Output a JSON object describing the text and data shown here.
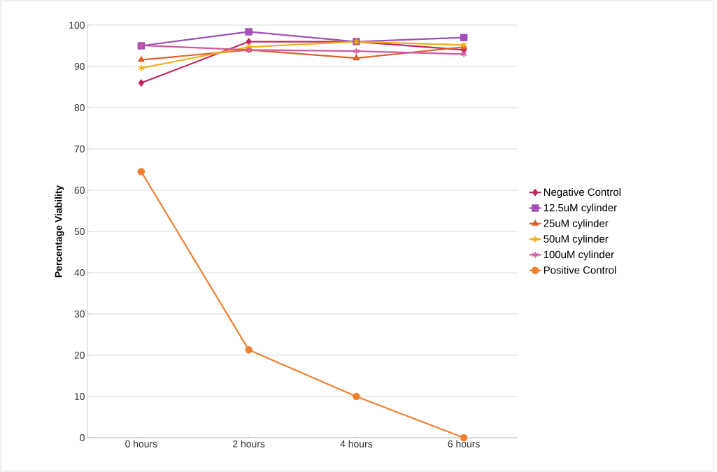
{
  "chart_data": {
    "type": "line",
    "ylabel": "Percentage Viability",
    "categories": [
      "0 hours",
      "2 hours",
      "4 hours",
      "6 hours"
    ],
    "ylim": [
      0,
      100
    ],
    "yticks": [
      0,
      10,
      20,
      30,
      40,
      50,
      60,
      70,
      80,
      90,
      100
    ],
    "grid": "y",
    "legend": "right",
    "series": [
      {
        "name": "Negative Control",
        "color": "#c0285a",
        "marker": "diamond",
        "values": [
          86,
          96,
          96,
          94
        ]
      },
      {
        "name": "12.5uM cylinder",
        "color": "#a050b8",
        "marker": "square",
        "values": [
          95,
          98.4,
          96,
          97
        ]
      },
      {
        "name": "25uM cylinder",
        "color": "#e0602a",
        "marker": "triangle",
        "values": [
          91.6,
          94,
          92,
          94.7
        ]
      },
      {
        "name": "50uM cylinder",
        "color": "#f0b010",
        "marker": "cross",
        "values": [
          89.6,
          94.7,
          96,
          95.2
        ]
      },
      {
        "name": "100uM cylinder",
        "color": "#d05aa0",
        "marker": "cross",
        "values": [
          95.1,
          94,
          93.7,
          93
        ]
      },
      {
        "name": "Positive Control",
        "color": "#f08030",
        "marker": "circle",
        "values": [
          64.5,
          21.3,
          10,
          0
        ]
      }
    ]
  }
}
